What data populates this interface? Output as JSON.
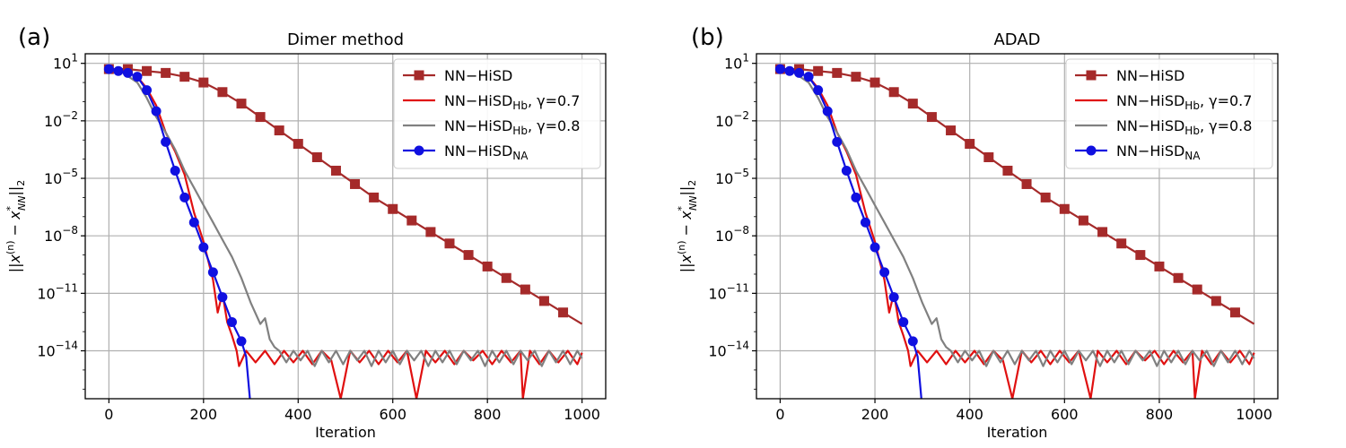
{
  "chart_data": [
    {
      "type": "line",
      "panel_label": "(a)",
      "title": "Dimer method",
      "xlabel": "Iteration",
      "ylabel_parts": {
        "pre": "||x",
        "sup1": "(n)",
        "mid": " − x",
        "sup2": "*",
        "sub2": "NN",
        "post": "||",
        "sub3": "2"
      },
      "xlim": [
        -50,
        1050
      ],
      "ylim_log10": [
        -16.5,
        1.5
      ],
      "y_scale": "log",
      "grid": true,
      "legend_position": "upper-right",
      "x_ticks": [
        0,
        200,
        400,
        600,
        800,
        1000
      ],
      "y_ticks": [
        {
          "exp": 1,
          "label": "10",
          "sup": "1"
        },
        {
          "exp": -2,
          "label": "10",
          "sup": "−2"
        },
        {
          "exp": -5,
          "label": "10",
          "sup": "−5"
        },
        {
          "exp": -8,
          "label": "10",
          "sup": "−8"
        },
        {
          "exp": -11,
          "label": "10",
          "sup": "−11"
        },
        {
          "exp": -14,
          "label": "10",
          "sup": "−14"
        }
      ],
      "series": [
        {
          "name": "NN−HiSD",
          "legend": {
            "main": "NN−HiSD",
            "sub": "",
            "suffix": ""
          },
          "color": "#a52a2a",
          "marker": "square",
          "x": [
            0,
            40,
            80,
            120,
            160,
            200,
            240,
            280,
            320,
            360,
            400,
            440,
            480,
            520,
            560,
            600,
            640,
            680,
            720,
            760,
            800,
            840,
            880,
            920,
            960,
            1000
          ],
          "log10_y": [
            0.7,
            0.7,
            0.6,
            0.5,
            0.3,
            0.0,
            -0.5,
            -1.1,
            -1.8,
            -2.5,
            -3.2,
            -3.9,
            -4.6,
            -5.3,
            -6.0,
            -6.6,
            -7.2,
            -7.8,
            -8.4,
            -9.0,
            -9.6,
            -10.2,
            -10.8,
            -11.4,
            -12.0,
            -12.6
          ],
          "marker_x": [
            0,
            40,
            80,
            120,
            160,
            200,
            240,
            280,
            320,
            360,
            400,
            440,
            480,
            520,
            560,
            600,
            640,
            680,
            720,
            760,
            800,
            840,
            880,
            920,
            960
          ]
        },
        {
          "name": "NN−HiSDHb, γ=0.7",
          "legend": {
            "main": "NN−HiSD",
            "sub": "Hb",
            "suffix": ", γ=0.7"
          },
          "color": "#e01010",
          "marker": "none",
          "x": [
            0,
            30,
            60,
            80,
            100,
            120,
            140,
            160,
            180,
            200,
            220,
            230,
            240,
            250,
            260,
            270,
            275,
            290,
            310,
            330,
            350,
            370,
            390,
            410,
            430,
            450,
            470,
            490,
            510,
            530,
            550,
            570,
            590,
            610,
            630,
            650,
            670,
            690,
            710,
            730,
            750,
            770,
            790,
            810,
            830,
            850,
            870,
            875,
            890,
            910,
            930,
            950,
            970,
            990,
            1000
          ],
          "log10_y": [
            0.7,
            0.6,
            0.3,
            -0.3,
            -1.2,
            -2.6,
            -3.6,
            -4.8,
            -6.8,
            -8.3,
            -10.3,
            -12.0,
            -11.0,
            -12.5,
            -13.2,
            -14.0,
            -14.8,
            -14.0,
            -14.6,
            -14.0,
            -14.7,
            -14.0,
            -14.6,
            -14.0,
            -14.7,
            -14.0,
            -14.5,
            -16.5,
            -14.0,
            -14.6,
            -14.0,
            -14.7,
            -14.0,
            -14.6,
            -14.0,
            -16.5,
            -14.0,
            -14.6,
            -14.0,
            -14.7,
            -14.0,
            -14.5,
            -14.0,
            -14.7,
            -14.0,
            -14.6,
            -14.0,
            -16.5,
            -14.0,
            -14.7,
            -14.0,
            -14.6,
            -14.0,
            -14.7,
            -14.1
          ]
        },
        {
          "name": "NN−HiSDHb, γ=0.8",
          "legend": {
            "main": "NN−HiSD",
            "sub": "Hb",
            "suffix": ", γ=0.8"
          },
          "color": "#808080",
          "marker": "none",
          "x": [
            0,
            30,
            60,
            80,
            100,
            120,
            140,
            160,
            180,
            200,
            220,
            240,
            260,
            280,
            300,
            320,
            330,
            340,
            350,
            360,
            375,
            390,
            405,
            420,
            435,
            450,
            465,
            480,
            495,
            510,
            525,
            540,
            555,
            570,
            585,
            600,
            615,
            630,
            645,
            660,
            675,
            690,
            705,
            720,
            735,
            750,
            765,
            780,
            795,
            810,
            825,
            840,
            855,
            870,
            885,
            900,
            915,
            930,
            945,
            960,
            975,
            990,
            1000
          ],
          "log10_y": [
            0.7,
            0.5,
            0.0,
            -0.8,
            -1.8,
            -2.6,
            -3.5,
            -4.6,
            -5.5,
            -6.4,
            -7.3,
            -8.2,
            -9.1,
            -10.2,
            -11.5,
            -12.6,
            -12.3,
            -13.4,
            -13.8,
            -14.0,
            -14.6,
            -14.0,
            -14.5,
            -14.0,
            -14.8,
            -14.0,
            -14.6,
            -14.0,
            -14.7,
            -14.0,
            -14.5,
            -14.0,
            -14.8,
            -14.0,
            -14.6,
            -14.0,
            -14.7,
            -14.0,
            -14.5,
            -14.0,
            -14.8,
            -14.0,
            -14.6,
            -14.0,
            -14.7,
            -14.0,
            -14.5,
            -14.0,
            -14.8,
            -14.0,
            -14.6,
            -14.0,
            -14.7,
            -14.0,
            -14.5,
            -14.0,
            -14.8,
            -14.0,
            -14.6,
            -14.0,
            -14.7,
            -14.0,
            -14.4
          ]
        },
        {
          "name": "NN−HiSDNA",
          "legend": {
            "main": "NN−HiSD",
            "sub": "NA",
            "suffix": ""
          },
          "color": "#1010e0",
          "marker": "circle",
          "x": [
            0,
            20,
            40,
            60,
            80,
            100,
            120,
            140,
            160,
            180,
            200,
            220,
            240,
            260,
            280,
            290,
            298
          ],
          "log10_y": [
            0.7,
            0.6,
            0.5,
            0.3,
            -0.4,
            -1.5,
            -3.1,
            -4.6,
            -6.0,
            -7.3,
            -8.6,
            -9.9,
            -11.2,
            -12.5,
            -13.5,
            -14.3,
            -16.5
          ],
          "marker_x": [
            0,
            20,
            40,
            60,
            80,
            100,
            120,
            140,
            160,
            180,
            200,
            220,
            240,
            260,
            280
          ]
        }
      ]
    },
    {
      "type": "line",
      "panel_label": "(b)",
      "title": "ADAD",
      "xlabel": "Iteration",
      "ylabel_parts": {
        "pre": "||x",
        "sup1": "(n)",
        "mid": " − x",
        "sup2": "*",
        "sub2": "NN",
        "post": "||",
        "sub3": "2"
      },
      "xlim": [
        -50,
        1050
      ],
      "ylim_log10": [
        -16.5,
        1.5
      ],
      "y_scale": "log",
      "grid": true,
      "legend_position": "upper-right",
      "x_ticks": [
        0,
        200,
        400,
        600,
        800,
        1000
      ],
      "y_ticks": [
        {
          "exp": 1,
          "label": "10",
          "sup": "1"
        },
        {
          "exp": -2,
          "label": "10",
          "sup": "−2"
        },
        {
          "exp": -5,
          "label": "10",
          "sup": "−5"
        },
        {
          "exp": -8,
          "label": "10",
          "sup": "−8"
        },
        {
          "exp": -11,
          "label": "10",
          "sup": "−11"
        },
        {
          "exp": -14,
          "label": "10",
          "sup": "−14"
        }
      ],
      "series": [
        {
          "name": "NN−HiSD",
          "legend": {
            "main": "NN−HiSD",
            "sub": "",
            "suffix": ""
          },
          "color": "#a52a2a",
          "marker": "square",
          "x": [
            0,
            40,
            80,
            120,
            160,
            200,
            240,
            280,
            320,
            360,
            400,
            440,
            480,
            520,
            560,
            600,
            640,
            680,
            720,
            760,
            800,
            840,
            880,
            920,
            960,
            1000
          ],
          "log10_y": [
            0.7,
            0.7,
            0.6,
            0.5,
            0.3,
            0.0,
            -0.5,
            -1.1,
            -1.8,
            -2.5,
            -3.2,
            -3.9,
            -4.6,
            -5.3,
            -6.0,
            -6.6,
            -7.2,
            -7.8,
            -8.4,
            -9.0,
            -9.6,
            -10.2,
            -10.8,
            -11.4,
            -12.0,
            -12.6
          ],
          "marker_x": [
            0,
            40,
            80,
            120,
            160,
            200,
            240,
            280,
            320,
            360,
            400,
            440,
            480,
            520,
            560,
            600,
            640,
            680,
            720,
            760,
            800,
            840,
            880,
            920,
            960
          ]
        },
        {
          "name": "NN−HiSDHb, γ=0.7",
          "legend": {
            "main": "NN−HiSD",
            "sub": "Hb",
            "suffix": ", γ=0.7"
          },
          "color": "#e01010",
          "marker": "none",
          "x": [
            0,
            30,
            60,
            80,
            100,
            120,
            140,
            160,
            180,
            200,
            220,
            230,
            240,
            250,
            260,
            270,
            275,
            290,
            310,
            330,
            350,
            370,
            390,
            410,
            430,
            450,
            470,
            490,
            510,
            530,
            550,
            570,
            590,
            610,
            630,
            655,
            670,
            690,
            710,
            730,
            750,
            770,
            790,
            810,
            830,
            850,
            870,
            875,
            890,
            910,
            930,
            950,
            970,
            990,
            1000
          ],
          "log10_y": [
            0.7,
            0.6,
            0.3,
            -0.3,
            -1.2,
            -2.6,
            -3.6,
            -4.8,
            -6.8,
            -8.3,
            -10.3,
            -12.0,
            -11.0,
            -12.5,
            -13.2,
            -14.0,
            -14.8,
            -14.0,
            -14.6,
            -14.0,
            -14.7,
            -14.0,
            -14.6,
            -14.0,
            -14.7,
            -14.0,
            -14.5,
            -16.5,
            -14.0,
            -14.6,
            -14.0,
            -14.7,
            -14.0,
            -14.6,
            -14.0,
            -16.5,
            -14.0,
            -14.6,
            -14.0,
            -14.7,
            -14.0,
            -14.5,
            -14.0,
            -14.7,
            -14.0,
            -14.6,
            -14.0,
            -16.5,
            -14.0,
            -14.7,
            -14.0,
            -14.6,
            -14.0,
            -14.7,
            -14.1
          ]
        },
        {
          "name": "NN−HiSDHb, γ=0.8",
          "legend": {
            "main": "NN−HiSD",
            "sub": "Hb",
            "suffix": ", γ=0.8"
          },
          "color": "#808080",
          "marker": "none",
          "x": [
            0,
            30,
            60,
            80,
            100,
            120,
            140,
            160,
            180,
            200,
            220,
            240,
            260,
            280,
            300,
            320,
            330,
            340,
            350,
            360,
            375,
            390,
            405,
            420,
            435,
            450,
            465,
            480,
            495,
            510,
            525,
            540,
            555,
            570,
            585,
            600,
            615,
            630,
            645,
            660,
            675,
            690,
            705,
            720,
            735,
            750,
            765,
            780,
            795,
            810,
            825,
            840,
            855,
            870,
            885,
            900,
            915,
            930,
            945,
            960,
            975,
            990,
            1000
          ],
          "log10_y": [
            0.7,
            0.5,
            0.0,
            -0.8,
            -1.8,
            -2.6,
            -3.5,
            -4.6,
            -5.5,
            -6.4,
            -7.3,
            -8.2,
            -9.1,
            -10.2,
            -11.5,
            -12.6,
            -12.3,
            -13.4,
            -13.8,
            -14.0,
            -14.6,
            -14.0,
            -14.5,
            -14.0,
            -14.8,
            -14.0,
            -14.6,
            -14.0,
            -14.7,
            -14.0,
            -14.5,
            -14.0,
            -14.8,
            -14.0,
            -14.6,
            -14.0,
            -14.7,
            -14.0,
            -14.5,
            -14.0,
            -14.8,
            -14.0,
            -14.6,
            -14.0,
            -14.7,
            -14.0,
            -14.5,
            -14.0,
            -14.8,
            -14.0,
            -14.6,
            -14.0,
            -14.7,
            -14.0,
            -14.5,
            -14.0,
            -14.8,
            -14.0,
            -14.6,
            -14.0,
            -14.7,
            -14.0,
            -14.4
          ]
        },
        {
          "name": "NN−HiSDNA",
          "legend": {
            "main": "NN−HiSD",
            "sub": "NA",
            "suffix": ""
          },
          "color": "#1010e0",
          "marker": "circle",
          "x": [
            0,
            20,
            40,
            60,
            80,
            100,
            120,
            140,
            160,
            180,
            200,
            220,
            240,
            260,
            280,
            290,
            298
          ],
          "log10_y": [
            0.7,
            0.6,
            0.5,
            0.3,
            -0.4,
            -1.5,
            -3.1,
            -4.6,
            -6.0,
            -7.3,
            -8.6,
            -9.9,
            -11.2,
            -12.5,
            -13.5,
            -14.3,
            -16.5
          ],
          "marker_x": [
            0,
            20,
            40,
            60,
            80,
            100,
            120,
            140,
            160,
            180,
            200,
            220,
            240,
            260,
            280
          ]
        }
      ]
    }
  ]
}
